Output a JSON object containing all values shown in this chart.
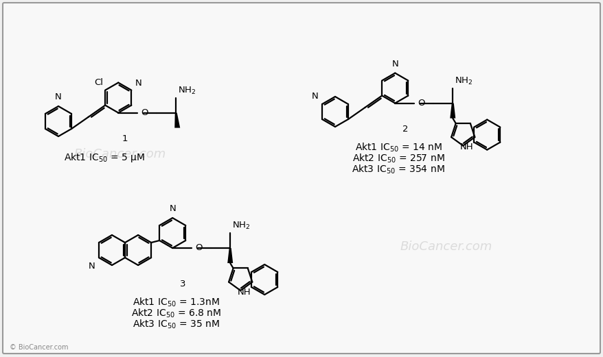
{
  "bg_color": "#f0f0f0",
  "border_color": "#999999",
  "lw": 1.6,
  "fs": 9.5,
  "compound1": {
    "label": "1",
    "activity": [
      "Akt1 IC$_{50}$ = 5 μM"
    ]
  },
  "compound2": {
    "label": "2",
    "activity": [
      "Akt1 IC$_{50}$ = 14 nM",
      "Akt2 IC$_{50}$ = 257 nM",
      "Akt3 IC$_{50}$ = 354 nM"
    ]
  },
  "compound3": {
    "label": "3",
    "activity": [
      "Akt1 IC$_{50}$ = 1.3nM",
      "Akt2 IC$_{50}$ = 6.8 nM",
      "Akt3 IC$_{50}$ = 35 nM"
    ]
  },
  "copyright": "© BioCancer.com"
}
